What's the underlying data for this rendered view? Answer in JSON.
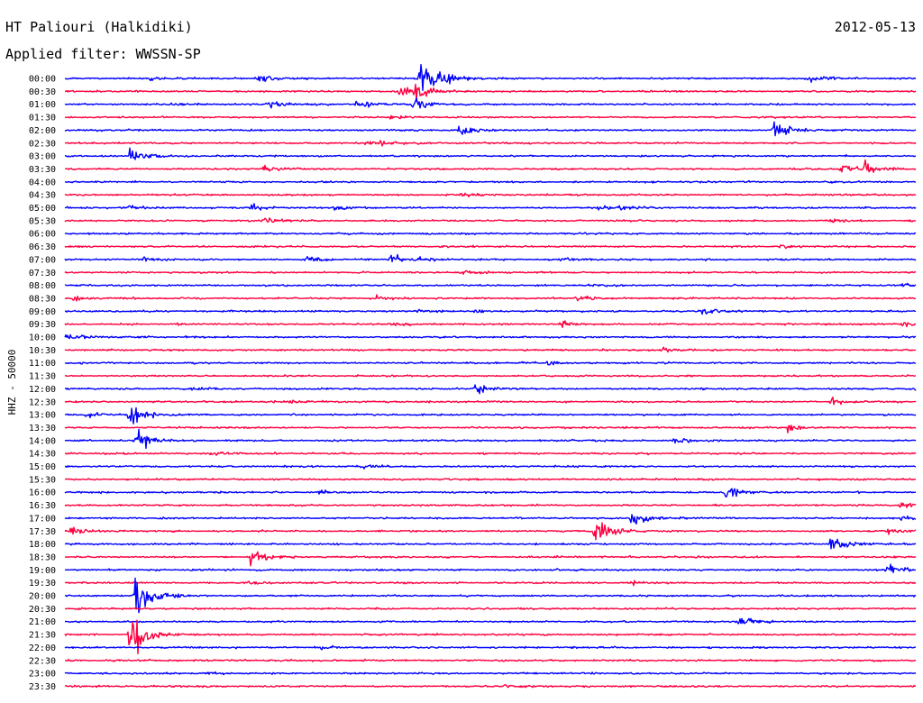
{
  "header": {
    "station": "HT Paliouri (Halkidiki)",
    "date": "2012-05-13",
    "filter": "Applied filter: WWSSN-SP"
  },
  "chart_data": {
    "type": "line",
    "ylabel": "HHZ - 50000",
    "rows": [
      "00:00",
      "00:30",
      "01:00",
      "01:30",
      "02:00",
      "02:30",
      "03:00",
      "03:30",
      "04:00",
      "04:30",
      "05:00",
      "05:30",
      "06:00",
      "06:30",
      "07:00",
      "07:30",
      "08:00",
      "08:30",
      "09:00",
      "09:30",
      "10:00",
      "10:30",
      "11:00",
      "11:30",
      "12:00",
      "12:30",
      "13:00",
      "13:30",
      "14:00",
      "14:30",
      "15:00",
      "15:30",
      "16:00",
      "16:30",
      "17:00",
      "17:30",
      "18:00",
      "18:30",
      "19:00",
      "19:30",
      "20:00",
      "20:30",
      "21:00",
      "21:30",
      "22:00",
      "22:30",
      "23:00",
      "23:30"
    ],
    "colors": [
      "#0000ff",
      "#ff0040"
    ],
    "minutes_per_row": 30,
    "events": [
      {
        "row": 0,
        "minute": 3.0,
        "amp": 2
      },
      {
        "row": 0,
        "minute": 6.8,
        "amp": 6
      },
      {
        "row": 0,
        "minute": 12.5,
        "amp": 30
      },
      {
        "row": 0,
        "minute": 13.0,
        "amp": 12
      },
      {
        "row": 0,
        "minute": 26.2,
        "amp": 6
      },
      {
        "row": 1,
        "minute": 11.8,
        "amp": 14
      },
      {
        "row": 1,
        "minute": 12.3,
        "amp": 12
      },
      {
        "row": 2,
        "minute": 3.8,
        "amp": 2
      },
      {
        "row": 2,
        "minute": 7.2,
        "amp": 8
      },
      {
        "row": 2,
        "minute": 10.3,
        "amp": 8
      },
      {
        "row": 2,
        "minute": 12.3,
        "amp": 10
      },
      {
        "row": 3,
        "minute": 11.5,
        "amp": 4
      },
      {
        "row": 4,
        "minute": 13.9,
        "amp": 8
      },
      {
        "row": 4,
        "minute": 25.0,
        "amp": 14
      },
      {
        "row": 5,
        "minute": 10.6,
        "amp": 3
      },
      {
        "row": 5,
        "minute": 11.1,
        "amp": 3
      },
      {
        "row": 6,
        "minute": 2.3,
        "amp": 12
      },
      {
        "row": 7,
        "minute": 7.0,
        "amp": 4
      },
      {
        "row": 7,
        "minute": 27.4,
        "amp": 7
      },
      {
        "row": 7,
        "minute": 28.2,
        "amp": 9
      },
      {
        "row": 9,
        "minute": 14.0,
        "amp": 2
      },
      {
        "row": 10,
        "minute": 2.3,
        "amp": 3
      },
      {
        "row": 10,
        "minute": 6.6,
        "amp": 5
      },
      {
        "row": 10,
        "minute": 9.5,
        "amp": 3
      },
      {
        "row": 10,
        "minute": 18.8,
        "amp": 4
      },
      {
        "row": 10,
        "minute": 19.6,
        "amp": 3
      },
      {
        "row": 11,
        "minute": 7.0,
        "amp": 6
      },
      {
        "row": 11,
        "minute": 27.0,
        "amp": 3
      },
      {
        "row": 13,
        "minute": 25.2,
        "amp": 3
      },
      {
        "row": 14,
        "minute": 2.8,
        "amp": 4
      },
      {
        "row": 14,
        "minute": 8.5,
        "amp": 4
      },
      {
        "row": 14,
        "minute": 11.5,
        "amp": 9
      },
      {
        "row": 14,
        "minute": 12.5,
        "amp": 3
      },
      {
        "row": 14,
        "minute": 17.5,
        "amp": 3
      },
      {
        "row": 15,
        "minute": 14.0,
        "amp": 2
      },
      {
        "row": 16,
        "minute": 18.5,
        "amp": 2
      },
      {
        "row": 16,
        "minute": 29.5,
        "amp": 3
      },
      {
        "row": 17,
        "minute": 0.3,
        "amp": 4
      },
      {
        "row": 17,
        "minute": 11.0,
        "amp": 3
      },
      {
        "row": 17,
        "minute": 18.0,
        "amp": 5
      },
      {
        "row": 18,
        "minute": 12.5,
        "amp": 3
      },
      {
        "row": 18,
        "minute": 14.5,
        "amp": 3
      },
      {
        "row": 18,
        "minute": 22.5,
        "amp": 5
      },
      {
        "row": 19,
        "minute": 11.5,
        "amp": 4
      },
      {
        "row": 19,
        "minute": 17.5,
        "amp": 4
      },
      {
        "row": 19,
        "minute": 29.5,
        "amp": 5
      },
      {
        "row": 20,
        "minute": 0.1,
        "amp": 5
      },
      {
        "row": 21,
        "minute": 21.0,
        "amp": 5
      },
      {
        "row": 22,
        "minute": 17.0,
        "amp": 3
      },
      {
        "row": 24,
        "minute": 4.5,
        "amp": 3
      },
      {
        "row": 24,
        "minute": 14.5,
        "amp": 10
      },
      {
        "row": 24,
        "minute": 30.0,
        "amp": 10
      },
      {
        "row": 25,
        "minute": 8.0,
        "amp": 3
      },
      {
        "row": 25,
        "minute": 27.0,
        "amp": 7
      },
      {
        "row": 26,
        "minute": 0.7,
        "amp": 6
      },
      {
        "row": 26,
        "minute": 2.3,
        "amp": 20
      },
      {
        "row": 27,
        "minute": 25.5,
        "amp": 6
      },
      {
        "row": 28,
        "minute": 2.5,
        "amp": 22
      },
      {
        "row": 28,
        "minute": 21.5,
        "amp": 5
      },
      {
        "row": 29,
        "minute": 5.2,
        "amp": 3
      },
      {
        "row": 30,
        "minute": 10.5,
        "amp": 3
      },
      {
        "row": 32,
        "minute": 9.0,
        "amp": 3
      },
      {
        "row": 32,
        "minute": 23.3,
        "amp": 9
      },
      {
        "row": 33,
        "minute": 29.5,
        "amp": 5
      },
      {
        "row": 34,
        "minute": 20.0,
        "amp": 12
      },
      {
        "row": 34,
        "minute": 29.5,
        "amp": 4
      },
      {
        "row": 35,
        "minute": 0.2,
        "amp": 6
      },
      {
        "row": 35,
        "minute": 18.7,
        "amp": 24
      },
      {
        "row": 35,
        "minute": 29.0,
        "amp": 4
      },
      {
        "row": 36,
        "minute": 27.0,
        "amp": 14
      },
      {
        "row": 37,
        "minute": 6.5,
        "amp": 12
      },
      {
        "row": 38,
        "minute": 29.0,
        "amp": 9
      },
      {
        "row": 39,
        "minute": 6.5,
        "amp": 3
      },
      {
        "row": 39,
        "minute": 20.0,
        "amp": 3
      },
      {
        "row": 40,
        "minute": 2.5,
        "amp": 42
      },
      {
        "row": 42,
        "minute": 23.8,
        "amp": 8
      },
      {
        "row": 43,
        "minute": 2.3,
        "amp": 45
      },
      {
        "row": 44,
        "minute": 9.0,
        "amp": 3
      },
      {
        "row": 46,
        "minute": 5.0,
        "amp": 2
      },
      {
        "row": 47,
        "minute": 15.5,
        "amp": 2
      }
    ]
  }
}
